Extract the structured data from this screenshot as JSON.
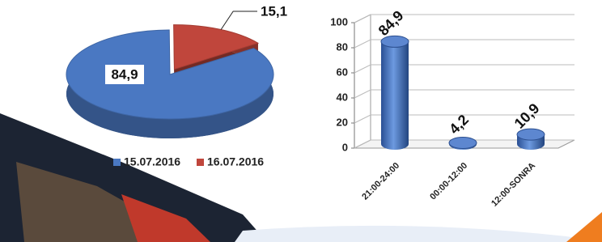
{
  "chart_data": [
    {
      "type": "pie",
      "categories": [
        "15.07.2016",
        "16.07.2016"
      ],
      "values": [
        84.9,
        15.1
      ],
      "value_labels": [
        "84,9",
        "15,1"
      ],
      "colors": [
        "#4a78c2",
        "#c0463c"
      ],
      "legend": "bottom"
    },
    {
      "type": "bar",
      "categories": [
        "21:00-24:00",
        "00:00-12:00",
        "12:00-SONRA"
      ],
      "values": [
        84.9,
        4.2,
        10.9
      ],
      "value_labels": [
        "84,9",
        "4,2",
        "10,9"
      ],
      "color": "#3f6fc0",
      "ylim": [
        0,
        100
      ],
      "yticks": [
        0,
        20,
        40,
        60,
        80,
        100
      ],
      "grid": true
    }
  ]
}
